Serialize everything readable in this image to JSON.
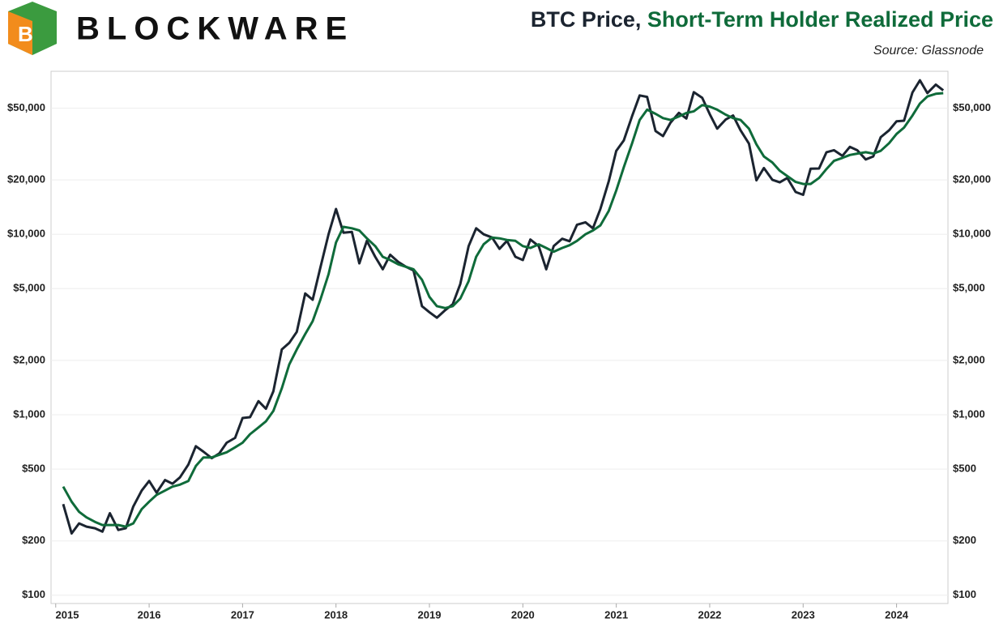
{
  "brand": "BLOCKWARE",
  "chart_data": {
    "type": "line",
    "title": [
      "BTC Price,",
      "Short-Term Holder Realized Price"
    ],
    "source": "Source: Glassnode",
    "log_scale": true,
    "grid": true,
    "x": [
      2015.08,
      2015.17,
      2015.25,
      2015.33,
      2015.42,
      2015.5,
      2015.58,
      2015.67,
      2015.75,
      2015.83,
      2015.92,
      2016.0,
      2016.08,
      2016.17,
      2016.25,
      2016.33,
      2016.42,
      2016.5,
      2016.58,
      2016.67,
      2016.75,
      2016.83,
      2016.92,
      2017.0,
      2017.08,
      2017.17,
      2017.25,
      2017.33,
      2017.42,
      2017.5,
      2017.58,
      2017.67,
      2017.75,
      2017.83,
      2017.92,
      2018.0,
      2018.08,
      2018.17,
      2018.25,
      2018.33,
      2018.42,
      2018.5,
      2018.58,
      2018.67,
      2018.75,
      2018.83,
      2018.92,
      2019.0,
      2019.08,
      2019.17,
      2019.25,
      2019.33,
      2019.42,
      2019.5,
      2019.58,
      2019.67,
      2019.75,
      2019.83,
      2019.92,
      2020.0,
      2020.08,
      2020.17,
      2020.25,
      2020.33,
      2020.42,
      2020.5,
      2020.58,
      2020.67,
      2020.75,
      2020.83,
      2020.92,
      2021.0,
      2021.08,
      2021.17,
      2021.25,
      2021.33,
      2021.42,
      2021.5,
      2021.58,
      2021.67,
      2021.75,
      2021.83,
      2021.92,
      2022.0,
      2022.08,
      2022.17,
      2022.25,
      2022.33,
      2022.42,
      2022.5,
      2022.58,
      2022.67,
      2022.75,
      2022.83,
      2022.92,
      2023.0,
      2023.08,
      2023.17,
      2023.25,
      2023.33,
      2023.42,
      2023.5,
      2023.58,
      2023.67,
      2023.75,
      2023.83,
      2023.92,
      2024.0,
      2024.08,
      2024.17,
      2024.25,
      2024.33,
      2024.42,
      2024.5
    ],
    "series": [
      {
        "color": "#1b2430",
        "values": [
          320,
          220,
          250,
          240,
          235,
          225,
          285,
          230,
          235,
          310,
          380,
          430,
          370,
          435,
          415,
          450,
          530,
          670,
          625,
          575,
          610,
          700,
          745,
          960,
          970,
          1190,
          1080,
          1350,
          2300,
          2500,
          2880,
          4700,
          4340,
          6450,
          10000,
          13800,
          10200,
          10300,
          6900,
          9200,
          7500,
          6400,
          7700,
          7000,
          6600,
          6300,
          4000,
          3700,
          3450,
          3800,
          4100,
          5300,
          8600,
          10800,
          10000,
          9600,
          8300,
          9200,
          7500,
          7200,
          9350,
          8600,
          6400,
          8600,
          9450,
          9150,
          11300,
          11650,
          10800,
          13800,
          19700,
          29000,
          33100,
          45200,
          58800,
          57700,
          37300,
          35000,
          41500,
          47100,
          43800,
          61300,
          57000,
          46300,
          38500,
          43200,
          45500,
          37700,
          31800,
          19900,
          23300,
          20050,
          19400,
          20500,
          17150,
          16550,
          23100,
          23150,
          28500,
          29250,
          27200,
          30500,
          29200,
          26000,
          27000,
          34500,
          37700,
          42300,
          42600,
          61100,
          71300,
          60600,
          67500,
          62700
        ]
      },
      {
        "color": "#0f6b3a",
        "values": [
          400,
          330,
          290,
          270,
          255,
          245,
          245,
          245,
          240,
          250,
          300,
          330,
          360,
          380,
          400,
          410,
          430,
          520,
          580,
          580,
          600,
          620,
          660,
          700,
          780,
          850,
          920,
          1050,
          1400,
          1900,
          2300,
          2800,
          3300,
          4300,
          6000,
          9000,
          11000,
          10800,
          10500,
          9500,
          8600,
          7500,
          7200,
          6800,
          6600,
          6400,
          5600,
          4500,
          4000,
          3900,
          4000,
          4400,
          5500,
          7500,
          8800,
          9600,
          9500,
          9300,
          9200,
          8600,
          8400,
          8800,
          8400,
          8000,
          8400,
          8700,
          9200,
          10000,
          10500,
          11200,
          13500,
          17500,
          23500,
          32000,
          43000,
          49000,
          46500,
          44000,
          43000,
          45000,
          47000,
          48000,
          52000,
          51000,
          49000,
          46000,
          44000,
          43000,
          38500,
          31500,
          27000,
          25000,
          22500,
          21000,
          19500,
          19000,
          19000,
          20500,
          23000,
          25500,
          26500,
          27500,
          28000,
          28500,
          28000,
          29000,
          32000,
          36000,
          39000,
          45500,
          53000,
          58000,
          60000,
          60500
        ]
      }
    ],
    "xlim": [
      2014.95,
      2024.55
    ],
    "xticks": [
      2015,
      2016,
      2017,
      2018,
      2019,
      2020,
      2021,
      2022,
      2023,
      2024
    ],
    "ylim": [
      90,
      80000
    ],
    "yticks": [
      {
        "value": 100,
        "label": "$100"
      },
      {
        "value": 200,
        "label": "$200"
      },
      {
        "value": 500,
        "label": "$500"
      },
      {
        "value": 1000,
        "label": "$1,000"
      },
      {
        "value": 2000,
        "label": "$2,000"
      },
      {
        "value": 5000,
        "label": "$5,000"
      },
      {
        "value": 10000,
        "label": "$10,000"
      },
      {
        "value": 20000,
        "label": "$20,000"
      },
      {
        "value": 50000,
        "label": "$50,000"
      }
    ]
  }
}
